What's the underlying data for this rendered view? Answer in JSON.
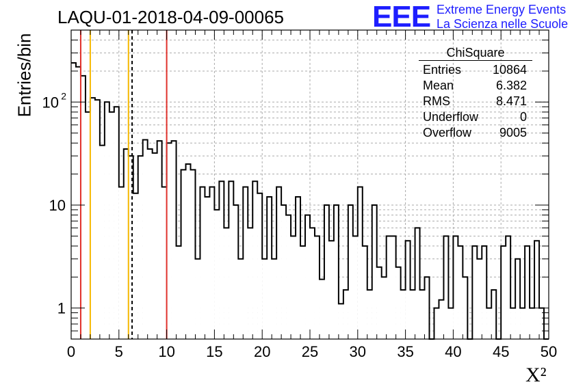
{
  "title": "LAQU-01-2018-04-09-00065",
  "logo": {
    "mark": "EEE",
    "line1": "Extreme Energy Events",
    "line2": "La Scienza nelle Scuole"
  },
  "stats": {
    "title": "ChiSquare",
    "rows": [
      {
        "label": "Entries",
        "value": "10864"
      },
      {
        "label": "Mean",
        "value": "6.382"
      },
      {
        "label": "RMS",
        "value": "8.471"
      },
      {
        "label": "Underflow",
        "value": "0"
      },
      {
        "label": "Overflow",
        "value": "9005"
      }
    ]
  },
  "colors": {
    "red": "#e0302a",
    "orange": "#f5b800",
    "logo": "#1e1eff"
  },
  "chart_data": {
    "type": "histogram",
    "xlabel": "X²",
    "ylabel": "Entries/bin",
    "xlim": [
      0,
      50
    ],
    "ylim": [
      0.5,
      500
    ],
    "yscale": "log",
    "grid": true,
    "bin_width": 0.5,
    "x_ticks": [
      "0",
      "5",
      "10",
      "15",
      "20",
      "25",
      "30",
      "35",
      "40",
      "45",
      "50"
    ],
    "y_ticks": [
      {
        "value": 1,
        "label": "1"
      },
      {
        "value": 10,
        "label": "10"
      },
      {
        "value": 100,
        "label": "10",
        "exp": "2"
      }
    ],
    "values": [
      240,
      220,
      180,
      80,
      110,
      105,
      38,
      100,
      80,
      90,
      15,
      35,
      30,
      13,
      30,
      43,
      35,
      32,
      42,
      15,
      40,
      42,
      4,
      22,
      25,
      22,
      3,
      15,
      12,
      15,
      9,
      17,
      6,
      17,
      10,
      3,
      15,
      6,
      17,
      13,
      3,
      12,
      3,
      15,
      10,
      8,
      5,
      12,
      4,
      8,
      6,
      5,
      1.9,
      10,
      4.5,
      10,
      1.1,
      1.5,
      10,
      5,
      15,
      4,
      1.5,
      10,
      2.5,
      2,
      5,
      5,
      2.5,
      1.5,
      4.5,
      1.5,
      6,
      1.5,
      2,
      0.5,
      1,
      1.2,
      5,
      1,
      5,
      4,
      2,
      0.5,
      4,
      3,
      4,
      1,
      1.5,
      0.5,
      4,
      5,
      1,
      3,
      1,
      4,
      1,
      4.5,
      1,
      0.5
    ],
    "vertical_lines": [
      {
        "x": 1,
        "color": "red",
        "style": "solid"
      },
      {
        "x": 2,
        "color": "orange",
        "style": "solid"
      },
      {
        "x": 6,
        "color": "orange",
        "style": "solid"
      },
      {
        "x": 6.38,
        "color": "black",
        "style": "dashed"
      },
      {
        "x": 10,
        "color": "red",
        "style": "solid"
      }
    ]
  }
}
